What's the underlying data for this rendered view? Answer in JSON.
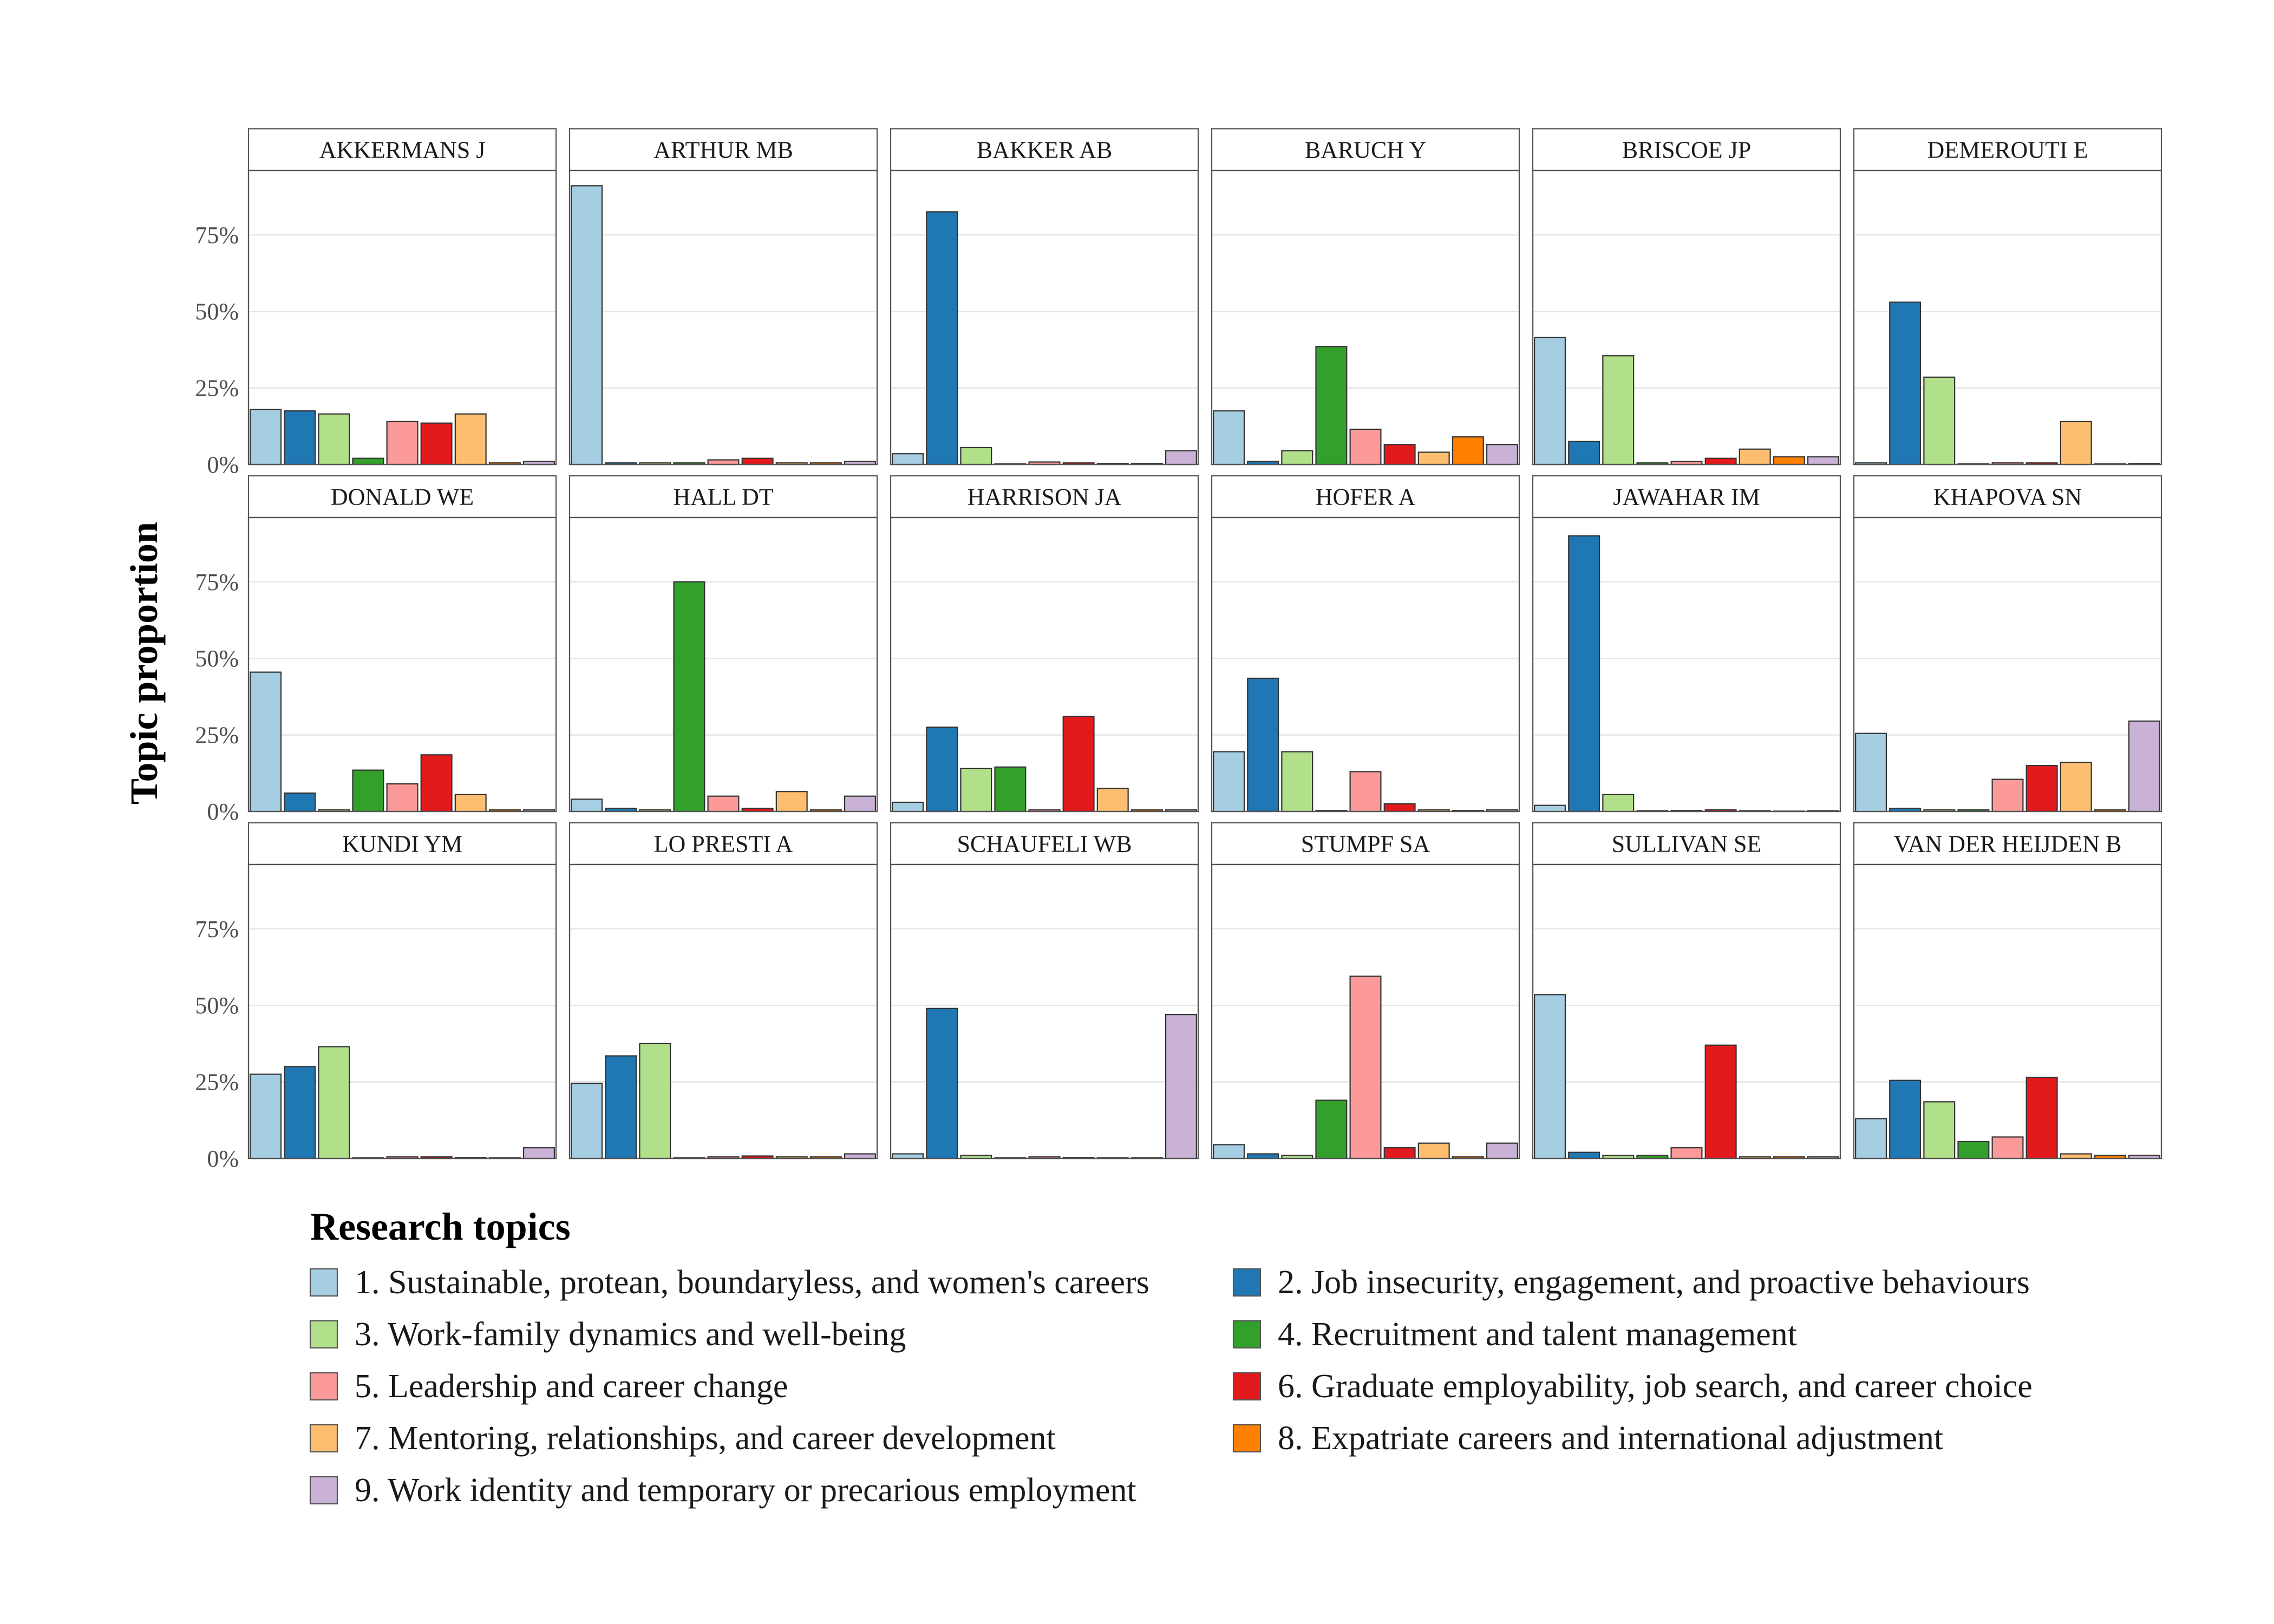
{
  "chart_data": {
    "type": "bar",
    "ylabel": "Topic proportion",
    "ylim": [
      0,
      0.96
    ],
    "yticks": [
      0,
      0.25,
      0.5,
      0.75
    ],
    "ytick_labels": [
      "0%",
      "25%",
      "50%",
      "75%"
    ],
    "grid": true,
    "legend_title": "Research topics",
    "legend_placement": "bottom",
    "topics": [
      {
        "label": "1. Sustainable, protean, boundaryless, and women's careers",
        "color": "#A6CEE3"
      },
      {
        "label": "2. Job insecurity, engagement, and proactive behaviours",
        "color": "#1F78B4"
      },
      {
        "label": "3. Work-family dynamics and well-being",
        "color": "#B2DF8A"
      },
      {
        "label": "4. Recruitment and talent management",
        "color": "#33A02C"
      },
      {
        "label": "5. Leadership and career change",
        "color": "#FB9A99"
      },
      {
        "label": "6. Graduate employability, job search, and career choice",
        "color": "#E31A1C"
      },
      {
        "label": "7. Mentoring, relationships, and career development",
        "color": "#FDBF6F"
      },
      {
        "label": "8. Expatriate careers and international adjustment",
        "color": "#FF7F00"
      },
      {
        "label": "9. Work identity and temporary or precarious employment",
        "color": "#CAB2D6"
      }
    ],
    "panels": [
      {
        "author": "AKKERMANS J",
        "values": [
          0.18,
          0.175,
          0.165,
          0.02,
          0.14,
          0.135,
          0.165,
          0.005,
          0.01
        ]
      },
      {
        "author": "ARTHUR MB",
        "values": [
          0.91,
          0.005,
          0.005,
          0.005,
          0.015,
          0.02,
          0.005,
          0.005,
          0.01
        ]
      },
      {
        "author": "BAKKER AB",
        "values": [
          0.035,
          0.825,
          0.055,
          0.002,
          0.008,
          0.005,
          0.003,
          0.003,
          0.045
        ]
      },
      {
        "author": "BARUCH Y",
        "values": [
          0.175,
          0.01,
          0.045,
          0.385,
          0.115,
          0.065,
          0.04,
          0.09,
          0.065
        ]
      },
      {
        "author": "BRISCOE JP",
        "values": [
          0.415,
          0.075,
          0.355,
          0.005,
          0.01,
          0.02,
          0.05,
          0.025,
          0.025
        ]
      },
      {
        "author": "DEMEROUTI E",
        "values": [
          0.005,
          0.53,
          0.285,
          0.002,
          0.005,
          0.005,
          0.14,
          0.002,
          0.003
        ]
      },
      {
        "author": "DONALD WE",
        "values": [
          0.455,
          0.06,
          0.005,
          0.135,
          0.09,
          0.185,
          0.055,
          0.005,
          0.005
        ]
      },
      {
        "author": "HALL DT",
        "values": [
          0.04,
          0.01,
          0.005,
          0.75,
          0.05,
          0.01,
          0.065,
          0.005,
          0.05
        ]
      },
      {
        "author": "HARRISON JA",
        "values": [
          0.03,
          0.275,
          0.14,
          0.145,
          0.005,
          0.31,
          0.075,
          0.005,
          0.005
        ]
      },
      {
        "author": "HOFER A",
        "values": [
          0.195,
          0.435,
          0.195,
          0.003,
          0.13,
          0.025,
          0.005,
          0.003,
          0.005
        ]
      },
      {
        "author": "JAWAHAR IM",
        "values": [
          0.02,
          0.9,
          0.055,
          0.002,
          0.003,
          0.005,
          0.002,
          0.001,
          0.002
        ]
      },
      {
        "author": "KHAPOVA SN",
        "values": [
          0.255,
          0.01,
          0.005,
          0.005,
          0.105,
          0.15,
          0.16,
          0.005,
          0.295
        ]
      },
      {
        "author": "KUNDI YM",
        "values": [
          0.275,
          0.3,
          0.365,
          0.002,
          0.005,
          0.005,
          0.003,
          0.002,
          0.035
        ]
      },
      {
        "author": "LO PRESTI A",
        "values": [
          0.245,
          0.335,
          0.375,
          0.002,
          0.005,
          0.008,
          0.005,
          0.005,
          0.015
        ]
      },
      {
        "author": "SCHAUFELI WB",
        "values": [
          0.015,
          0.49,
          0.01,
          0.002,
          0.005,
          0.003,
          0.002,
          0.002,
          0.47
        ]
      },
      {
        "author": "STUMPF SA",
        "values": [
          0.045,
          0.015,
          0.01,
          0.19,
          0.595,
          0.035,
          0.05,
          0.005,
          0.05
        ]
      },
      {
        "author": "SULLIVAN SE",
        "values": [
          0.535,
          0.02,
          0.01,
          0.01,
          0.035,
          0.37,
          0.005,
          0.005,
          0.005
        ]
      },
      {
        "author": "VAN DER HEIJDEN B",
        "values": [
          0.13,
          0.255,
          0.185,
          0.055,
          0.07,
          0.265,
          0.015,
          0.01,
          0.01
        ]
      }
    ]
  }
}
